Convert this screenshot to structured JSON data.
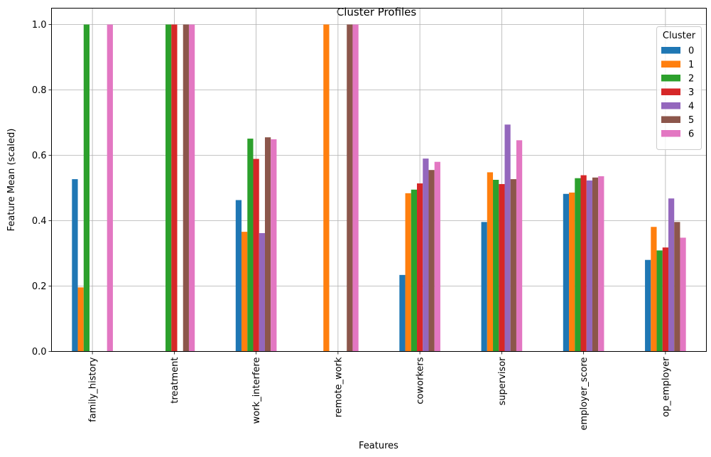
{
  "chart_data": {
    "type": "bar",
    "title": "Cluster Profiles",
    "xlabel": "Features",
    "ylabel": "Feature Mean (scaled)",
    "ylim": [
      0,
      1.05
    ],
    "yticks": [
      "0.0",
      "0.2",
      "0.4",
      "0.6",
      "0.8",
      "1.0"
    ],
    "grid": true,
    "legend_title": "Cluster",
    "legend_position": "top-right",
    "categories": [
      "family_history",
      "treatment",
      "work_interfere",
      "remote_work",
      "coworkers",
      "supervisor",
      "employer_score",
      "op_employer"
    ],
    "series": [
      {
        "name": "0",
        "color": "#1f77b4",
        "values": [
          0.527,
          0.0,
          0.463,
          0.0,
          0.234,
          0.396,
          0.482,
          0.28
        ]
      },
      {
        "name": "1",
        "color": "#ff7f0e",
        "values": [
          0.196,
          0.0,
          0.366,
          1.0,
          0.484,
          0.548,
          0.486,
          0.381
        ]
      },
      {
        "name": "2",
        "color": "#2ca02c",
        "values": [
          1.0,
          1.0,
          0.651,
          0.0,
          0.495,
          0.525,
          0.53,
          0.309
        ]
      },
      {
        "name": "3",
        "color": "#d62728",
        "values": [
          0.0,
          1.0,
          0.589,
          0.0,
          0.514,
          0.512,
          0.539,
          0.318
        ]
      },
      {
        "name": "4",
        "color": "#9467bd",
        "values": [
          0.0,
          0.0,
          0.362,
          0.0,
          0.59,
          0.694,
          0.523,
          0.468
        ]
      },
      {
        "name": "5",
        "color": "#8c564b",
        "values": [
          0.0,
          1.0,
          0.655,
          1.0,
          0.555,
          0.527,
          0.532,
          0.396
        ]
      },
      {
        "name": "6",
        "color": "#e377c2",
        "values": [
          1.0,
          1.0,
          0.649,
          1.0,
          0.58,
          0.646,
          0.536,
          0.348
        ]
      }
    ]
  }
}
